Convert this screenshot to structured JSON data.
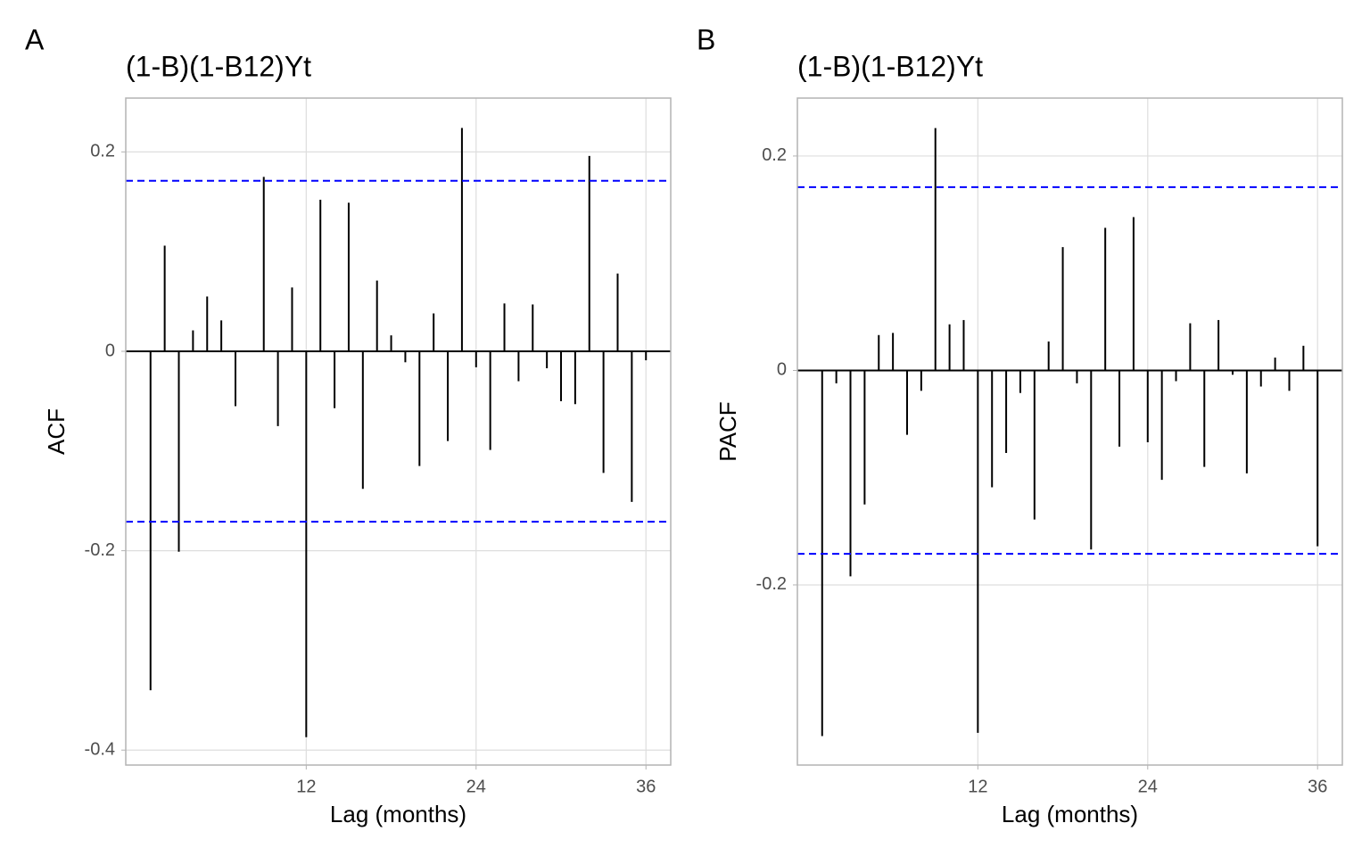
{
  "chart_data": [
    {
      "type": "bar",
      "panel_label": "A",
      "title": "(1-B)(1-B12)Yt",
      "x_label": "Lag (months)",
      "y_label": "ACF",
      "color": "#000000",
      "x": [
        1,
        2,
        3,
        4,
        5,
        6,
        7,
        8,
        9,
        10,
        11,
        12,
        13,
        14,
        15,
        16,
        17,
        18,
        19,
        20,
        21,
        22,
        23,
        24,
        25,
        26,
        27,
        28,
        29,
        30,
        31,
        32,
        33,
        34,
        35,
        36
      ],
      "values": [
        -0.34,
        0.106,
        -0.201,
        0.021,
        0.055,
        0.031,
        -0.055,
        0.0,
        0.175,
        -0.075,
        0.064,
        -0.387,
        0.152,
        -0.057,
        0.149,
        -0.138,
        0.071,
        0.016,
        -0.011,
        -0.115,
        0.038,
        -0.09,
        0.224,
        -0.016,
        -0.099,
        0.048,
        -0.03,
        0.047,
        -0.017,
        -0.05,
        -0.053,
        0.196,
        -0.122,
        0.078,
        -0.151,
        -0.009
      ],
      "xlim": [
        -0.75,
        37.75
      ],
      "xticks": [
        12,
        24,
        36
      ],
      "ylim": [
        -0.415,
        0.254
      ],
      "yticks": [
        -0.4,
        -0.2,
        0.0,
        0.2
      ],
      "hlines": [
        0.171,
        -0.171
      ],
      "hline_color": "#0000ff",
      "grid": true
    },
    {
      "type": "bar",
      "panel_label": "B",
      "title": "(1-B)(1-B12)Yt",
      "x_label": "Lag (months)",
      "y_label": "PACF",
      "color": "#000000",
      "x": [
        1,
        2,
        3,
        4,
        5,
        6,
        7,
        8,
        9,
        10,
        11,
        12,
        13,
        14,
        15,
        16,
        17,
        18,
        19,
        20,
        21,
        22,
        23,
        24,
        25,
        26,
        27,
        28,
        29,
        30,
        31,
        32,
        33,
        34,
        35,
        36
      ],
      "values": [
        -0.341,
        -0.012,
        -0.192,
        -0.125,
        0.033,
        0.035,
        -0.06,
        -0.019,
        0.226,
        0.043,
        0.047,
        -0.338,
        -0.109,
        -0.077,
        -0.021,
        -0.139,
        0.027,
        0.115,
        -0.012,
        -0.167,
        0.133,
        -0.071,
        0.143,
        -0.067,
        -0.102,
        -0.01,
        0.044,
        -0.09,
        0.047,
        -0.004,
        -0.096,
        -0.015,
        0.012,
        -0.019,
        0.023,
        -0.164
      ],
      "xlim": [
        -0.75,
        37.75
      ],
      "xticks": [
        12,
        24,
        36
      ],
      "ylim": [
        -0.368,
        0.254
      ],
      "yticks": [
        -0.2,
        0.0,
        0.2
      ],
      "hlines": [
        0.171,
        -0.171
      ],
      "hline_color": "#0000ff",
      "grid": true
    }
  ]
}
